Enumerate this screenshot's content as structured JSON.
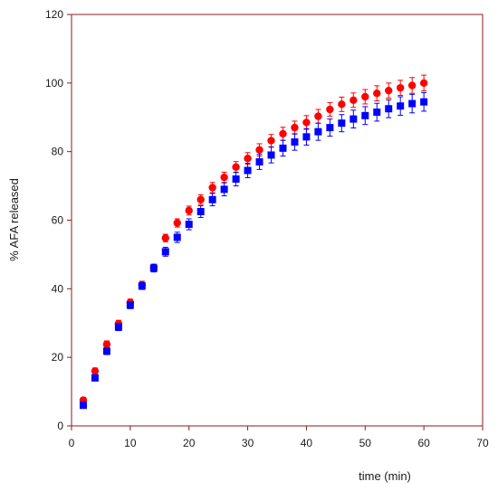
{
  "chart_data": {
    "type": "scatter",
    "title": "",
    "xlabel": "time (min)",
    "ylabel": "% AFA released",
    "xlim": [
      0,
      70
    ],
    "ylim": [
      0,
      120
    ],
    "xticks": [
      0,
      10,
      20,
      30,
      40,
      50,
      60,
      70
    ],
    "yticks": [
      0,
      20,
      40,
      60,
      80,
      100,
      120
    ],
    "grid": false,
    "legend": "none",
    "x": [
      2,
      4,
      6,
      8,
      10,
      12,
      14,
      16,
      18,
      20,
      22,
      24,
      26,
      28,
      30,
      32,
      34,
      36,
      38,
      40,
      42,
      44,
      46,
      48,
      50,
      52,
      54,
      56,
      58,
      60
    ],
    "series": [
      {
        "marker": "circle",
        "color": "#ff0000",
        "values": [
          7.5,
          16.0,
          23.8,
          29.8,
          36.0,
          41.2,
          46.2,
          54.8,
          59.2,
          62.8,
          66.0,
          69.5,
          72.5,
          75.5,
          78.0,
          80.5,
          83.2,
          85.2,
          87.0,
          88.5,
          90.3,
          92.3,
          93.8,
          95.0,
          96.0,
          97.0,
          97.8,
          98.6,
          99.3,
          100.0
        ],
        "errors": [
          0.8,
          0.9,
          1.0,
          1.0,
          1.0,
          1.0,
          1.0,
          1.1,
          1.2,
          1.3,
          1.4,
          1.5,
          1.5,
          1.6,
          1.7,
          1.8,
          1.8,
          1.9,
          1.9,
          2.0,
          2.0,
          2.0,
          2.1,
          2.1,
          2.1,
          2.2,
          2.2,
          2.2,
          2.3,
          2.3
        ]
      },
      {
        "marker": "square",
        "color": "#0000ff",
        "values": [
          6.0,
          14.0,
          21.8,
          28.8,
          35.2,
          40.8,
          46.0,
          50.8,
          55.0,
          58.8,
          62.5,
          66.0,
          69.0,
          72.0,
          74.5,
          77.0,
          79.0,
          81.0,
          82.8,
          84.3,
          85.8,
          87.0,
          88.3,
          89.5,
          90.5,
          91.5,
          92.5,
          93.3,
          94.0,
          94.5
        ],
        "errors": [
          0.8,
          0.9,
          1.0,
          1.0,
          1.0,
          1.0,
          1.1,
          1.3,
          1.5,
          1.6,
          1.7,
          1.8,
          1.9,
          2.0,
          2.1,
          2.2,
          2.3,
          2.3,
          2.4,
          2.4,
          2.5,
          2.5,
          2.5,
          2.6,
          2.6,
          2.6,
          2.6,
          2.7,
          2.7,
          2.7
        ]
      }
    ],
    "axis_color": "#8a1e1e"
  }
}
